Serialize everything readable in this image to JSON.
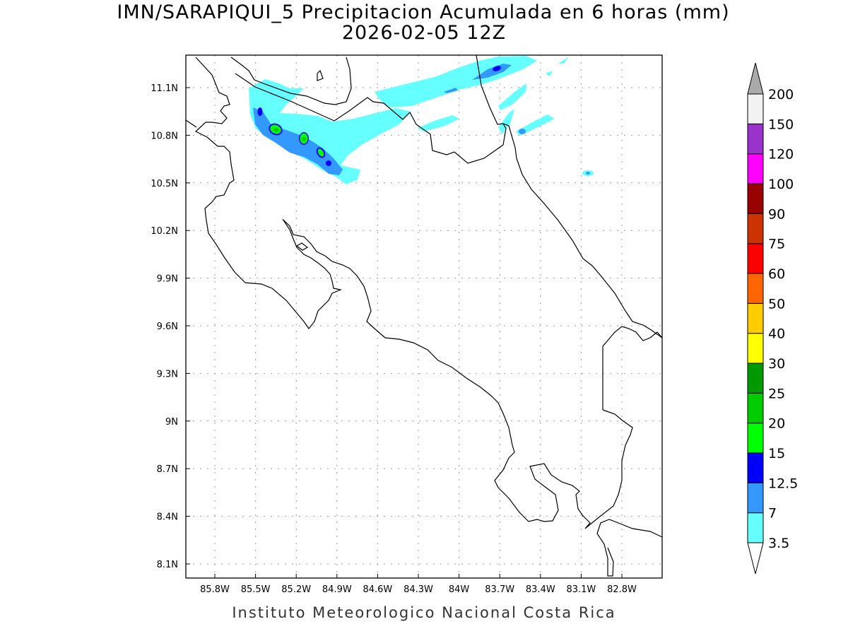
{
  "title": {
    "line1": "IMN/SARAPIQUI_5 Precipitacion Acumulada en 6 horas (mm)",
    "line2": "2026-02-05 12Z"
  },
  "footer": "Instituto Meteorologico Nacional Costa Rica",
  "map": {
    "lon_ticks": [
      "85.8W",
      "85.5W",
      "85.2W",
      "84.9W",
      "84.6W",
      "84.3W",
      "84W",
      "83.7W",
      "83.4W",
      "83.1W",
      "82.8W"
    ],
    "lat_ticks": [
      "8.1N",
      "8.4N",
      "8.7N",
      "9N",
      "9.3N",
      "9.6N",
      "9.9N",
      "10.2N",
      "10.5N",
      "10.8N",
      "11.1N"
    ]
  },
  "legend": {
    "labels": [
      "3.5",
      "7",
      "12.5",
      "15",
      "20",
      "25",
      "30",
      "40",
      "50",
      "60",
      "75",
      "90",
      "100",
      "120",
      "150",
      "200"
    ],
    "colors": [
      "#66ffff",
      "#3399ff",
      "#0000ff",
      "#00ff00",
      "#00cc00",
      "#009900",
      "#ffff00",
      "#ffcc00",
      "#ff6600",
      "#ff0000",
      "#cc3300",
      "#990000",
      "#ff00ff",
      "#9933cc",
      "#f2f2f2"
    ],
    "over_color": "#aaaaaa",
    "under_color": "#ffffff"
  }
}
